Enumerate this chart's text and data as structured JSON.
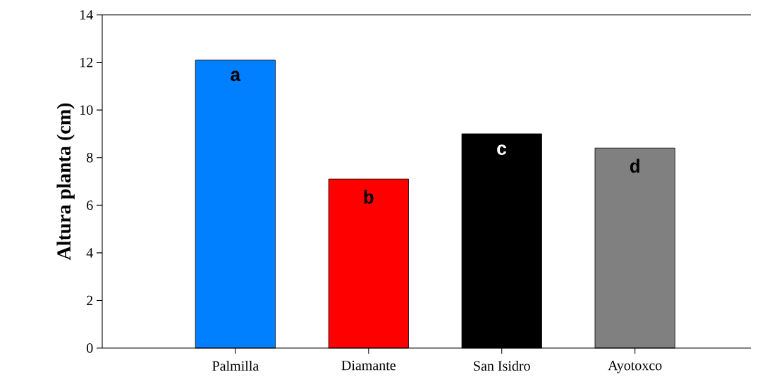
{
  "chart_data": {
    "type": "bar",
    "ylabel": "Altura planta (cm)",
    "categories": [
      "Palmilla",
      "Diamante",
      "San Isidro",
      "Ayotoxco"
    ],
    "values": [
      12.1,
      7.1,
      9.0,
      8.4
    ],
    "colors": [
      "#0080ff",
      "#ff0000",
      "#000000",
      "#808080"
    ],
    "ylim": [
      0,
      14
    ],
    "yticks": [
      0,
      2,
      4,
      6,
      8,
      10,
      12,
      14
    ],
    "annotations": [
      "a",
      "b",
      "c",
      "d"
    ]
  }
}
